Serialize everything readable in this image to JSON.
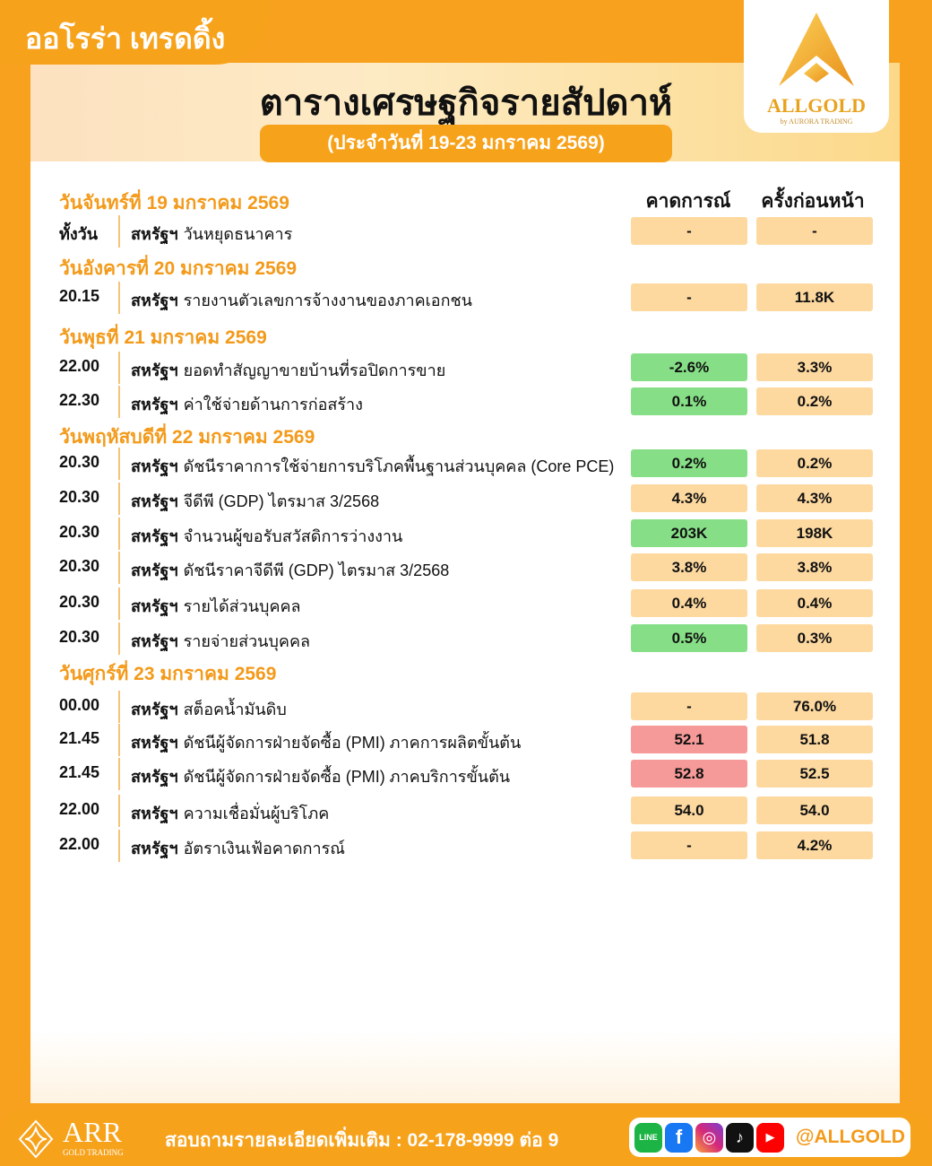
{
  "brand": "ออโรร่า เทรดดิ้ง",
  "title": "ตารางเศรษฐกิจรายสัปดาห์",
  "subtitle": "(ประจำวันที่ 19-23 มกราคม 2569)",
  "logo": {
    "name": "ALLGOLD",
    "tagline": "by AURORA TRADING"
  },
  "columns": {
    "forecast": "คาดการณ์",
    "previous": "ครั้งก่อนหน้า"
  },
  "colors": {
    "accent": "#F7A21B",
    "neutral": "#FDD9A0",
    "green": "#86DF86",
    "red": "#F59A98"
  },
  "days": [
    {
      "label": "วันจันทร์ที่ 19 มกราคม 2569",
      "events": [
        {
          "time": "ทั้งวัน",
          "country": "สหรัฐฯ",
          "name": "วันหยุดธนาคาร",
          "forecast": "-",
          "previous": "-",
          "tone": "neutral"
        }
      ]
    },
    {
      "label": "วันอังคารที่ 20 มกราคม 2569",
      "events": [
        {
          "time": "20.15",
          "country": "สหรัฐฯ",
          "name": "รายงานตัวเลขการจ้างงานของภาคเอกชน",
          "forecast": "-",
          "previous": "11.8K",
          "tone": "neutral"
        }
      ]
    },
    {
      "label": "วันพุธที่ 21 มกราคม 2569",
      "events": [
        {
          "time": "22.00",
          "country": "สหรัฐฯ",
          "name": "ยอดทำสัญญาขายบ้านที่รอปิดการขาย",
          "forecast": "-2.6%",
          "previous": "3.3%",
          "tone": "green"
        },
        {
          "time": "22.30",
          "country": "สหรัฐฯ",
          "name": "ค่าใช้จ่ายด้านการก่อสร้าง",
          "forecast": "0.1%",
          "previous": "0.2%",
          "tone": "green"
        }
      ]
    },
    {
      "label": "วันพฤหัสบดีที่ 22 มกราคม 2569",
      "events": [
        {
          "time": "20.30",
          "country": "สหรัฐฯ",
          "name": "ดัชนีราคาการใช้จ่ายการบริโภคพื้นฐานส่วนบุคคล (Core PCE)",
          "forecast": "0.2%",
          "previous": "0.2%",
          "tone": "green"
        },
        {
          "time": "20.30",
          "country": "สหรัฐฯ",
          "name": "จีดีพี (GDP) ไตรมาส 3/2568",
          "forecast": "4.3%",
          "previous": "4.3%",
          "tone": "neutral"
        },
        {
          "time": "20.30",
          "country": "สหรัฐฯ",
          "name": "จำนวนผู้ขอรับสวัสดิการว่างงาน",
          "forecast": "203K",
          "previous": "198K",
          "tone": "green"
        },
        {
          "time": "20.30",
          "country": "สหรัฐฯ",
          "name": "ดัชนีราคาจีดีพี (GDP) ไตรมาส 3/2568",
          "forecast": "3.8%",
          "previous": "3.8%",
          "tone": "neutral"
        },
        {
          "time": "20.30",
          "country": "สหรัฐฯ",
          "name": "รายได้ส่วนบุคคล",
          "forecast": "0.4%",
          "previous": "0.4%",
          "tone": "neutral"
        },
        {
          "time": "20.30",
          "country": "สหรัฐฯ",
          "name": "รายจ่ายส่วนบุคคล",
          "forecast": "0.5%",
          "previous": "0.3%",
          "tone": "green"
        }
      ]
    },
    {
      "label": "วันศุกร์ที่ 23 มกราคม 2569",
      "events": [
        {
          "time": "00.00",
          "country": "สหรัฐฯ",
          "name": "สต็อคน้ำมันดิบ",
          "forecast": "-",
          "previous": "76.0%",
          "tone": "neutral"
        },
        {
          "time": "21.45",
          "country": "สหรัฐฯ",
          "name": "ดัชนีผู้จัดการฝ่ายจัดซื้อ (PMI) ภาคการผลิตขั้นต้น",
          "forecast": "52.1",
          "previous": "51.8",
          "tone": "red"
        },
        {
          "time": "21.45",
          "country": "สหรัฐฯ",
          "name": "ดัชนีผู้จัดการฝ่ายจัดซื้อ (PMI) ภาคบริการขั้นต้น",
          "forecast": "52.8",
          "previous": "52.5",
          "tone": "red"
        },
        {
          "time": "22.00",
          "country": "สหรัฐฯ",
          "name": "ความเชื่อมั่นผู้บริโภค",
          "forecast": "54.0",
          "previous": "54.0",
          "tone": "neutral"
        },
        {
          "time": "22.00",
          "country": "สหรัฐฯ",
          "name": "อัตราเงินเฟ้อคาดการณ์",
          "forecast": "-",
          "previous": "4.2%",
          "tone": "neutral"
        }
      ]
    }
  ],
  "footer": {
    "company": "ARR",
    "company_sub": "GOLD TRADING",
    "contact": "สอบถามรายละเอียดเพิ่มเติม : 02-178-9999 ต่อ 9",
    "handle": "@ALLGOLD",
    "socials": [
      "line-icon",
      "facebook-icon",
      "instagram-icon",
      "tiktok-icon",
      "youtube-icon"
    ]
  }
}
